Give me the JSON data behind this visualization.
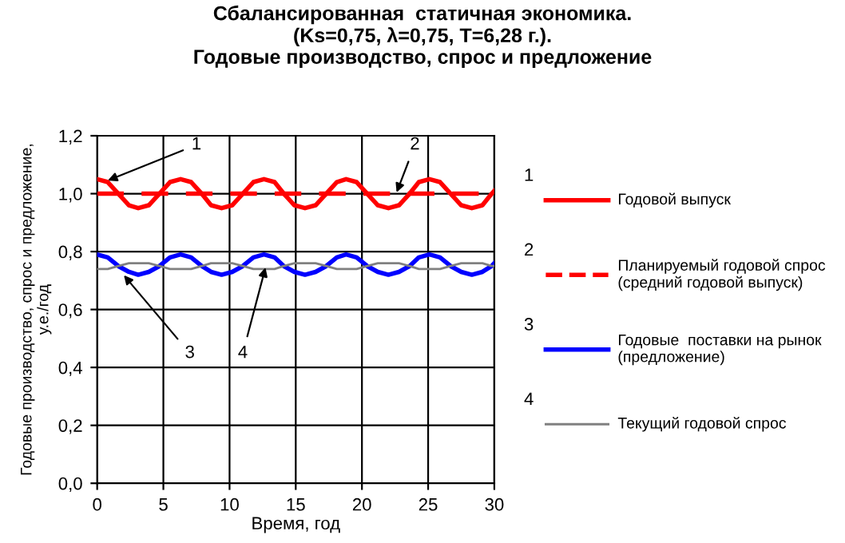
{
  "chart_data": {
    "type": "line",
    "title": "Сбалансированная  статичная экономика.\n(Ks=0,75, λ=0,75, T=6,28 г.).\nГодовые производство, спрос и предложение",
    "xlabel": "Время, год",
    "ylabel": "Годовые производство, спрос и предложение,\nу.е./год",
    "x": [
      0,
      0.8,
      1.6,
      2.4,
      3.1,
      3.9,
      4.7,
      5.5,
      6.3,
      7.1,
      7.9,
      8.6,
      9.4,
      10.2,
      11,
      11.8,
      12.6,
      13.4,
      14.1,
      14.9,
      15.7,
      16.5,
      17.3,
      18.1,
      18.8,
      19.6,
      20.4,
      21.2,
      22,
      22.8,
      23.6,
      24.3,
      25.1,
      25.9,
      26.7,
      27.5,
      28.3,
      29.1,
      29.8,
      30
    ],
    "series": [
      {
        "name": "Годовой выпуск",
        "color": "#ff0000",
        "line_style": "solid",
        "values": [
          1.05,
          1.04,
          1.0,
          0.96,
          0.95,
          0.96,
          1.0,
          1.04,
          1.05,
          1.04,
          1.0,
          0.96,
          0.95,
          0.96,
          1.0,
          1.04,
          1.05,
          1.04,
          1.0,
          0.96,
          0.95,
          0.96,
          1.0,
          1.04,
          1.05,
          1.04,
          1.0,
          0.96,
          0.95,
          0.96,
          1.0,
          1.04,
          1.05,
          1.04,
          1.0,
          0.96,
          0.95,
          0.96,
          1.0,
          1.01
        ]
      },
      {
        "name": "Планируемый годовой спрос\n(средний годовой выпуск)",
        "color": "#ff0000",
        "line_style": "dashed",
        "x": [
          0,
          30
        ],
        "values": [
          1.0,
          1.0
        ]
      },
      {
        "name": "Годовые  поставки на рынок\n(предложение)",
        "color": "#0000ff",
        "line_style": "solid",
        "values": [
          0.79,
          0.78,
          0.75,
          0.73,
          0.72,
          0.73,
          0.75,
          0.78,
          0.79,
          0.78,
          0.75,
          0.73,
          0.72,
          0.73,
          0.75,
          0.78,
          0.79,
          0.78,
          0.75,
          0.73,
          0.72,
          0.73,
          0.75,
          0.78,
          0.79,
          0.78,
          0.75,
          0.73,
          0.72,
          0.73,
          0.75,
          0.78,
          0.79,
          0.78,
          0.75,
          0.73,
          0.72,
          0.73,
          0.75,
          0.76
        ]
      },
      {
        "name": "Текущий годовой спрос",
        "color": "#808080",
        "line_style": "solid",
        "values": [
          0.74,
          0.74,
          0.75,
          0.76,
          0.76,
          0.76,
          0.75,
          0.74,
          0.74,
          0.74,
          0.75,
          0.76,
          0.76,
          0.76,
          0.75,
          0.74,
          0.74,
          0.74,
          0.75,
          0.76,
          0.76,
          0.76,
          0.75,
          0.74,
          0.74,
          0.74,
          0.75,
          0.76,
          0.76,
          0.76,
          0.75,
          0.74,
          0.74,
          0.74,
          0.75,
          0.76,
          0.76,
          0.76,
          0.75,
          0.75
        ]
      }
    ],
    "annotations": [
      {
        "text": "1",
        "x": 0.5,
        "y": 1.04
      },
      {
        "text": "2",
        "x": 22.5,
        "y": 0.99
      },
      {
        "text": "3",
        "x": 1.8,
        "y": 0.73
      },
      {
        "text": "4",
        "x": 12.8,
        "y": 0.76
      },
      "1",
      "2",
      "3",
      "4"
    ],
    "xlim": [
      0,
      30
    ],
    "xticks": [
      0,
      5,
      10,
      15,
      20,
      25,
      30
    ],
    "ylim": [
      0,
      1.2
    ],
    "yticks": [
      {
        "value": 0,
        "label": "0,0"
      },
      {
        "value": 0.2,
        "label": "0,2"
      },
      {
        "value": 0.4,
        "label": "0,4"
      },
      {
        "value": 0.6,
        "label": "0,6"
      },
      {
        "value": 0.8,
        "label": "0,8"
      },
      {
        "value": 1.0,
        "label": "1,0"
      },
      {
        "value": 1.2,
        "label": "1,2"
      }
    ],
    "grid": true,
    "legend": "right",
    "marker": "none"
  }
}
